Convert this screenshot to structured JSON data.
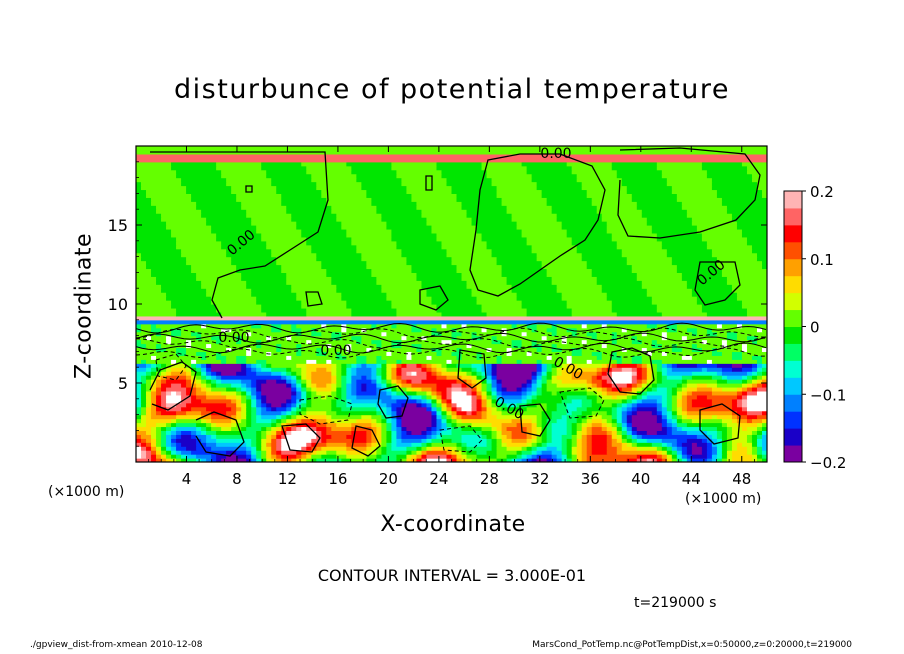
{
  "chart_data": {
    "type": "heatmap",
    "title": "disturbunce of potential temperature",
    "xlabel": "X-coordinate",
    "ylabel": "Z-coordinate",
    "x_unit": "(×1000 m)",
    "y_unit": "(×1000 m)",
    "xlim": [
      0,
      50
    ],
    "ylim": [
      0,
      20
    ],
    "x_ticks": [
      4,
      8,
      12,
      16,
      20,
      24,
      28,
      32,
      36,
      40,
      44,
      48
    ],
    "y_ticks": [
      5,
      10,
      15
    ],
    "colorbar": {
      "range": [
        -0.2,
        0.2
      ],
      "tick_values": [
        0.2,
        0.1,
        0,
        -0.1,
        -0.2
      ],
      "tick_labels": [
        "0.2",
        "0.1",
        "0",
        "−0.1",
        "−0.2"
      ],
      "colors": [
        "#7a00a0",
        "#1a00c8",
        "#0032ff",
        "#0080ff",
        "#00c8ff",
        "#00ffd2",
        "#00ff64",
        "#00e600",
        "#64ff00",
        "#d2ff00",
        "#ffdc00",
        "#ffa000",
        "#ff5000",
        "#ff0000",
        "#ff6464",
        "#ffb4b4"
      ]
    },
    "contour_labels": [
      "0.00",
      "0.00",
      "0.00",
      "0.00",
      "0.00",
      "0.00",
      "0.00"
    ],
    "contour_interval_text": "CONTOUR INTERVAL = 3.000E-01",
    "time_text": "t=219000 s"
  },
  "footer": {
    "left": "./gpview_dist-from-xmean   2010-12-08",
    "right": "MarsCond_PotTemp.nc@PotTempDist,x=0:50000,z=0:20000,t=219000"
  }
}
